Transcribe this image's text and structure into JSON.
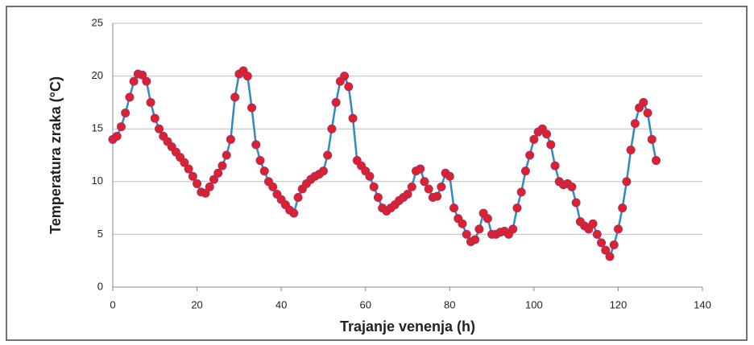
{
  "chart_data": {
    "type": "line",
    "x_label": "Trajanje venenja (h)",
    "y_label": "Temperatura zraka (°C)",
    "x": [
      0,
      1,
      2,
      3,
      4,
      5,
      6,
      7,
      8,
      9,
      10,
      11,
      12,
      13,
      14,
      15,
      16,
      17,
      18,
      19,
      20,
      21,
      22,
      23,
      24,
      25,
      26,
      27,
      28,
      29,
      30,
      31,
      32,
      33,
      34,
      35,
      36,
      37,
      38,
      39,
      40,
      41,
      42,
      43,
      44,
      45,
      46,
      47,
      48,
      49,
      50,
      51,
      52,
      53,
      54,
      55,
      56,
      57,
      58,
      59,
      60,
      61,
      62,
      63,
      64,
      65,
      66,
      67,
      68,
      69,
      70,
      71,
      72,
      73,
      74,
      75,
      76,
      77,
      78,
      79,
      80,
      81,
      82,
      83,
      84,
      85,
      86,
      87,
      88,
      89,
      90,
      91,
      92,
      93,
      94,
      95,
      96,
      97,
      98,
      99,
      100,
      101,
      102,
      103,
      104,
      105,
      106,
      107,
      108,
      109,
      110,
      111,
      112,
      113,
      114,
      115,
      116,
      117,
      118,
      119,
      120,
      121,
      122,
      123,
      124,
      125,
      126,
      127,
      128,
      129
    ],
    "series": [
      {
        "color": "#2e8bc0",
        "marker_color": "#e0202a",
        "values": [
          14.0,
          14.3,
          15.2,
          16.5,
          18.0,
          19.5,
          20.2,
          20.1,
          19.5,
          17.5,
          16.0,
          15.0,
          14.3,
          13.8,
          13.3,
          12.8,
          12.3,
          11.8,
          11.2,
          10.5,
          9.8,
          9.0,
          8.9,
          9.5,
          10.2,
          10.8,
          11.5,
          12.5,
          14.0,
          18.0,
          20.2,
          20.5,
          20.0,
          17.0,
          13.5,
          12.0,
          11.0,
          10.0,
          9.5,
          8.8,
          8.3,
          7.8,
          7.3,
          7.0,
          8.5,
          9.3,
          9.8,
          10.2,
          10.5,
          10.7,
          11.0,
          12.5,
          15.0,
          17.5,
          19.5,
          20.0,
          19.0,
          16.0,
          12.0,
          11.5,
          11.0,
          10.5,
          9.5,
          8.5,
          7.5,
          7.2,
          7.5,
          7.8,
          8.2,
          8.5,
          8.8,
          9.5,
          11.0,
          11.2,
          10.0,
          9.3,
          8.5,
          8.6,
          9.5,
          10.8,
          10.5,
          7.5,
          6.5,
          6.0,
          5.0,
          4.3,
          4.5,
          5.5,
          7.0,
          6.5,
          5.0,
          5.0,
          5.2,
          5.3,
          5.0,
          5.5,
          7.5,
          9.0,
          11.0,
          12.5,
          14.0,
          14.7,
          15.0,
          14.5,
          13.5,
          11.5,
          10.0,
          9.7,
          9.8,
          9.5,
          8.0,
          6.2,
          5.8,
          5.5,
          6.0,
          5.0,
          4.2,
          3.5,
          2.9,
          4.0,
          5.5,
          7.5,
          10.0,
          13.0,
          15.5,
          17.0,
          17.5,
          16.5,
          14.0,
          12.0
        ]
      }
    ],
    "xlim": [
      0,
      140
    ],
    "xticks": [
      0,
      20,
      40,
      60,
      80,
      100,
      120,
      140
    ],
    "ylim": [
      0,
      25
    ],
    "yticks": [
      0,
      5,
      10,
      15,
      20,
      25
    ],
    "grid": true
  }
}
